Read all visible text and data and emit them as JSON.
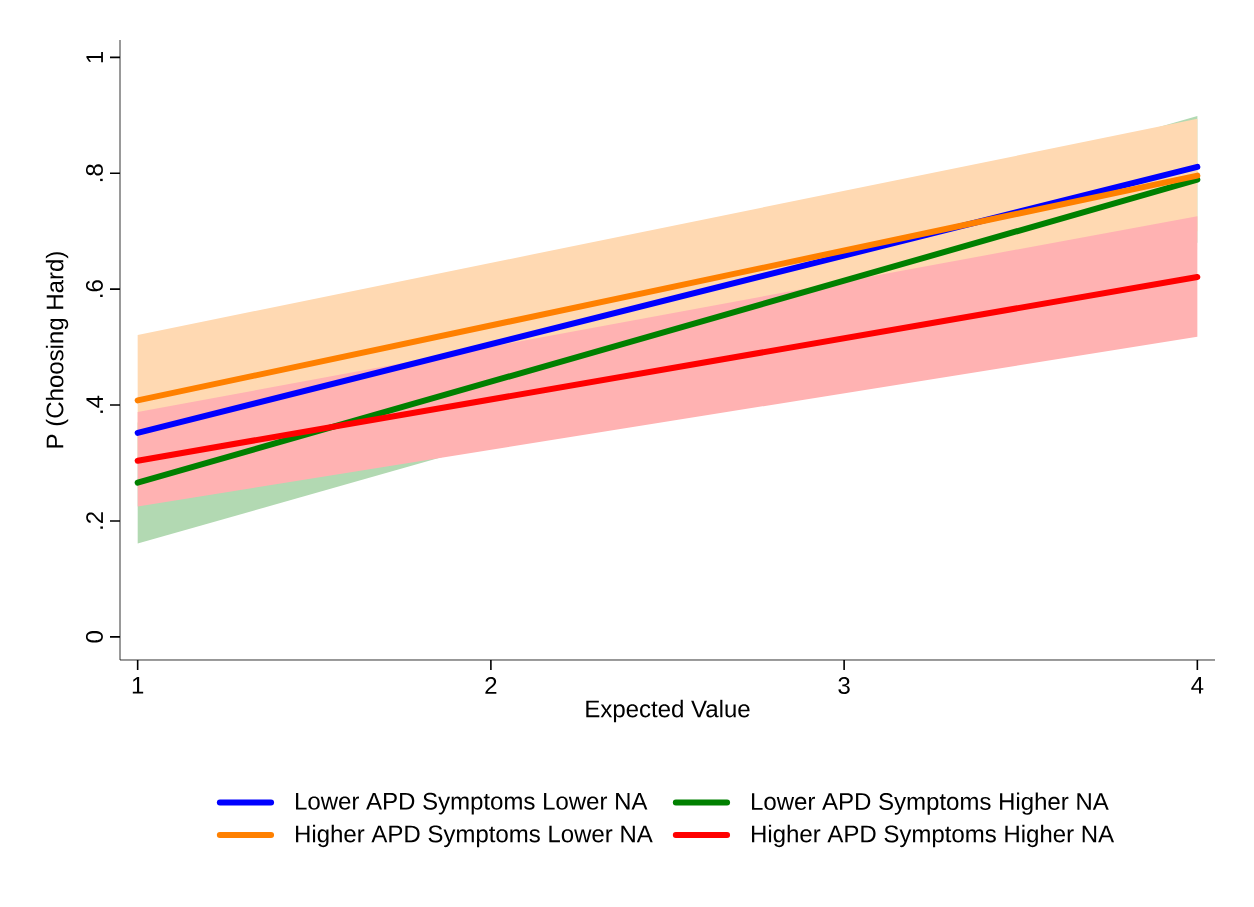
{
  "chart_data": {
    "type": "line",
    "xlabel": "Expected Value",
    "ylabel": "P (Choosing Hard)",
    "x": [
      1,
      4
    ],
    "xlim": [
      0.95,
      4.05
    ],
    "ylim": [
      -0.04,
      1.03
    ],
    "xticks": [
      1,
      2,
      3,
      4
    ],
    "yticks": [
      0,
      {
        "value": 0.2,
        "label": ".2"
      },
      {
        "value": 0.4,
        "label": ".4"
      },
      {
        "value": 0.6,
        "label": ".6"
      },
      {
        "value": 0.8,
        "label": ".8"
      },
      1
    ],
    "legend": "bottom",
    "grid": false,
    "marker": "none",
    "line_style": "solid",
    "series": [
      {
        "name": "Lower APD Symptoms Lower NA",
        "color": "#0000ff",
        "values": [
          0.352,
          0.811
        ]
      },
      {
        "name": "Lower APD Symptoms Higher NA",
        "color": "#008000",
        "values": [
          0.266,
          0.789
        ],
        "lower": [
          0.161,
          0.68
        ],
        "upper": [
          0.37,
          0.899
        ]
      },
      {
        "name": "Higher APD Symptoms Lower NA",
        "color": "#ff8000",
        "values": [
          0.408,
          0.796
        ],
        "lower": [
          0.3,
          0.7
        ],
        "upper": [
          0.521,
          0.894
        ]
      },
      {
        "name": "Higher APD Symptoms Higher NA",
        "color": "#ff0000",
        "values": [
          0.304,
          0.621
        ],
        "lower": [
          0.225,
          0.518
        ],
        "upper": [
          0.388,
          0.726
        ]
      }
    ]
  }
}
